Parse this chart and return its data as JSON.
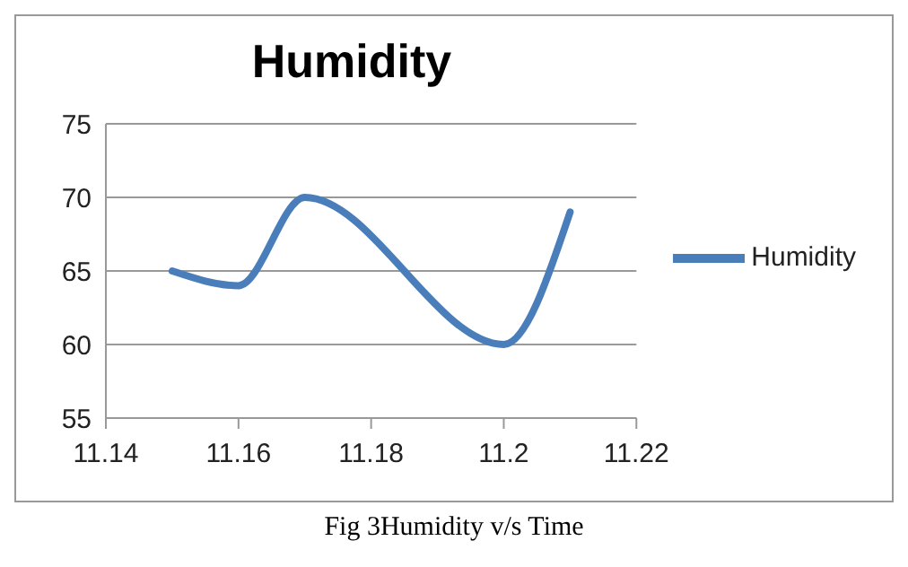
{
  "chart_data": {
    "type": "line",
    "title": "Humidity",
    "x": [
      11.15,
      11.16,
      11.17,
      11.2,
      11.21
    ],
    "series": [
      {
        "name": "Humidity",
        "color": "#4a7ebb",
        "values": [
          65,
          64,
          70,
          60,
          69
        ]
      }
    ],
    "xlim": [
      11.14,
      11.22
    ],
    "xticks": [
      11.14,
      11.16,
      11.18,
      {
        "value": 11.2,
        "label": "11.2"
      },
      11.22
    ],
    "ylim": [
      55,
      75
    ],
    "yticks": [
      55,
      60,
      65,
      70,
      75
    ],
    "grid": "y",
    "legend": "right",
    "marker": "none",
    "annotations": [
      "Fig 3Humidity v/s Time"
    ]
  }
}
